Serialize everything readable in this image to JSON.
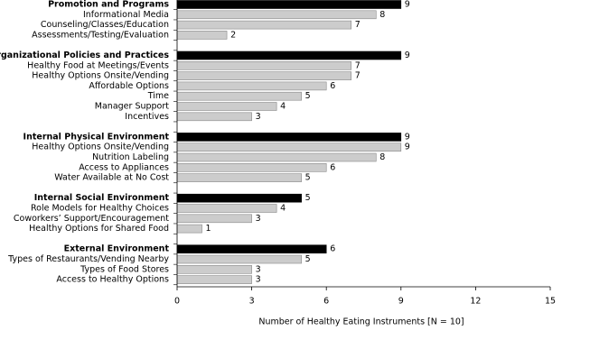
{
  "chart_data": {
    "type": "bar",
    "orientation": "horizontal",
    "x_label": "Number of Healthy Eating Instruments [N = 10]",
    "xlim": [
      0,
      15
    ],
    "xticks": [
      0,
      3,
      6,
      9,
      12,
      15
    ],
    "group_color": "#000000",
    "item_color": "#cccccc",
    "groups": [
      {
        "label": "Promotion and Programs",
        "value": 9,
        "items": [
          {
            "label": "Informational Media",
            "value": 8
          },
          {
            "label": "Counseling/Classes/Education",
            "value": 7
          },
          {
            "label": "Assessments/Testing/Evaluation",
            "value": 2
          }
        ]
      },
      {
        "label": "Organizational Policies and Practices",
        "value": 9,
        "items": [
          {
            "label": "Healthy Food at Meetings/Events",
            "value": 7
          },
          {
            "label": "Healthy Options Onsite/Vending",
            "value": 7
          },
          {
            "label": "Affordable Options",
            "value": 6
          },
          {
            "label": "Time",
            "value": 5
          },
          {
            "label": "Manager Support",
            "value": 4
          },
          {
            "label": "Incentives",
            "value": 3
          }
        ]
      },
      {
        "label": "Internal Physical Environment",
        "value": 9,
        "items": [
          {
            "label": "Healthy Options Onsite/Vending",
            "value": 9
          },
          {
            "label": "Nutrition Labeling",
            "value": 8
          },
          {
            "label": "Access to Appliances",
            "value": 6
          },
          {
            "label": "Water Available at No Cost",
            "value": 5
          }
        ]
      },
      {
        "label": "Internal Social Environment",
        "value": 5,
        "items": [
          {
            "label": "Role Models for Healthy Choices",
            "value": 4
          },
          {
            "label": "Coworkers’ Support/Encouragement",
            "value": 3
          },
          {
            "label": "Healthy Options for Shared Food",
            "value": 1
          }
        ]
      },
      {
        "label": "External Environment",
        "value": 6,
        "items": [
          {
            "label": "Types of Restaurants/Vending Nearby",
            "value": 5
          },
          {
            "label": "Types of Food Stores",
            "value": 3
          },
          {
            "label": "Access to Healthy Options",
            "value": 3
          }
        ]
      }
    ]
  }
}
